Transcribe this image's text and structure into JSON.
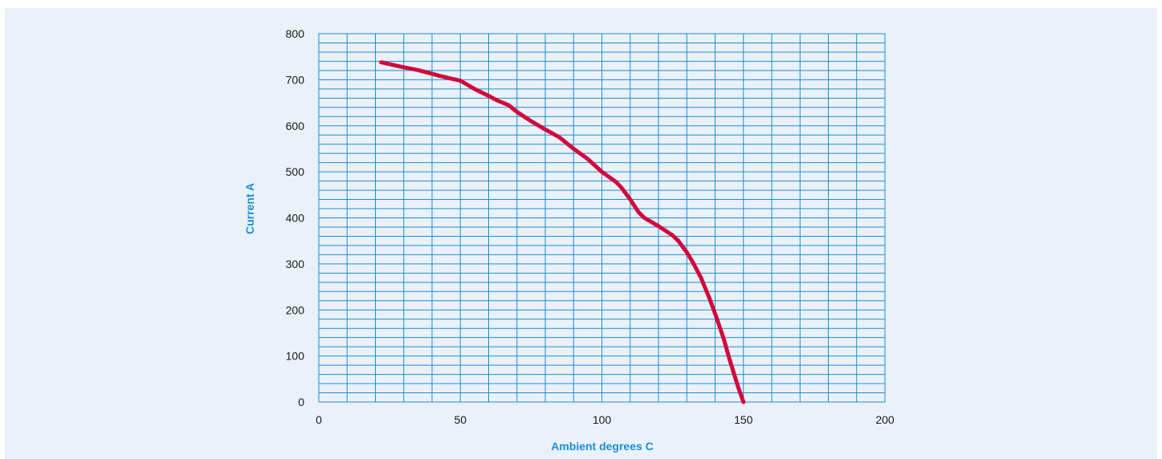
{
  "chart_data": {
    "type": "line",
    "title": "",
    "xlabel": "Ambient degrees C",
    "ylabel": "Current A",
    "xlim": [
      0,
      200
    ],
    "ylim": [
      0,
      800
    ],
    "x_ticks": [
      0,
      50,
      100,
      150,
      200
    ],
    "y_ticks": [
      0,
      100,
      200,
      300,
      400,
      500,
      600,
      700,
      800
    ],
    "x_tick_labels": [
      "0",
      "50",
      "100",
      "150",
      "200"
    ],
    "y_tick_labels": [
      "0",
      "100",
      "200",
      "300",
      "400",
      "500",
      "600",
      "700",
      "800"
    ],
    "grid": true,
    "grid_x_step": 10,
    "grid_y_step": 20,
    "series": [
      {
        "color": "#d10a3c",
        "x": [
          22,
          25,
          30,
          35,
          40,
          43,
          47,
          50,
          55,
          60,
          63,
          67,
          70,
          75,
          80,
          85,
          90,
          95,
          100,
          105,
          107,
          110,
          113,
          115,
          120,
          125,
          127,
          130,
          132,
          135,
          138,
          140,
          143,
          145,
          148,
          150
        ],
        "y": [
          738,
          734,
          727,
          721,
          713,
          708,
          702,
          698,
          680,
          665,
          655,
          645,
          630,
          610,
          592,
          575,
          550,
          528,
          500,
          478,
          465,
          440,
          412,
          400,
          382,
          362,
          350,
          325,
          305,
          270,
          225,
          192,
          138,
          95,
          35,
          0
        ]
      }
    ]
  }
}
